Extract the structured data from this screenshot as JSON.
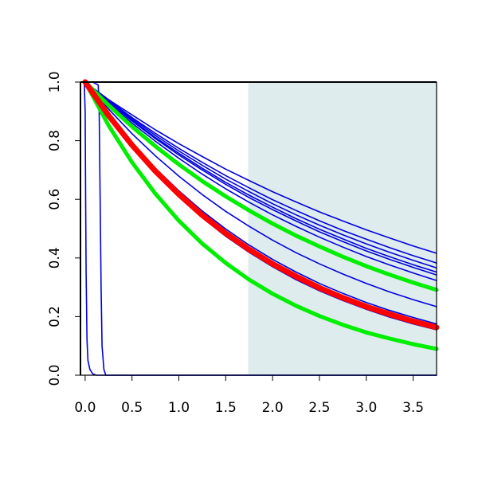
{
  "chart_data": {
    "type": "line",
    "title": "",
    "xlabel": "",
    "ylabel": "",
    "xlim": [
      -0.05,
      3.75
    ],
    "ylim": [
      0,
      1
    ],
    "grid": false,
    "legend": "none",
    "x_ticks": [
      {
        "value": 0.0,
        "label": "0.0"
      },
      {
        "value": 0.5,
        "label": "0.5"
      },
      {
        "value": 1.0,
        "label": "1.0"
      },
      {
        "value": 1.5,
        "label": "1.5"
      },
      {
        "value": 2.0,
        "label": "2.0"
      },
      {
        "value": 2.5,
        "label": "2.5"
      },
      {
        "value": 3.0,
        "label": "3.0"
      },
      {
        "value": 3.5,
        "label": "3.5"
      }
    ],
    "y_ticks": [
      {
        "value": 0.0,
        "label": "0.0"
      },
      {
        "value": 0.2,
        "label": "0.2"
      },
      {
        "value": 0.4,
        "label": "0.4"
      },
      {
        "value": 0.6,
        "label": "0.6"
      },
      {
        "value": 0.8,
        "label": "0.8"
      },
      {
        "value": 1.0,
        "label": "1.0"
      }
    ],
    "shaded_region": {
      "x_from": 1.74,
      "x_to": 3.75,
      "color": "#deeced"
    },
    "colors": {
      "thin": "#0000dd",
      "red": "#ff0000",
      "green": "#00ee00"
    },
    "x": [
      0,
      0.25,
      0.5,
      0.75,
      1.0,
      1.25,
      1.5,
      1.75,
      2.0,
      2.25,
      2.5,
      2.75,
      3.0,
      3.25,
      3.5,
      3.75
    ],
    "series": [
      {
        "style": "thin",
        "values": [
          1.0,
          0.94,
          0.888,
          0.837,
          0.79,
          0.746,
          0.703,
          0.664,
          0.626,
          0.591,
          0.557,
          0.526,
          0.496,
          0.468,
          0.441,
          0.416
        ]
      },
      {
        "style": "thin",
        "values": [
          1.0,
          0.938,
          0.879,
          0.825,
          0.774,
          0.726,
          0.681,
          0.639,
          0.599,
          0.562,
          0.527,
          0.494,
          0.464,
          0.435,
          0.408,
          0.383
        ]
      },
      {
        "style": "thin",
        "values": [
          1.0,
          0.935,
          0.875,
          0.818,
          0.765,
          0.716,
          0.669,
          0.626,
          0.585,
          0.547,
          0.512,
          0.479,
          0.448,
          0.419,
          0.392,
          0.366
        ]
      },
      {
        "style": "thin",
        "values": [
          1.0,
          0.933,
          0.87,
          0.811,
          0.757,
          0.706,
          0.658,
          0.614,
          0.573,
          0.534,
          0.498,
          0.465,
          0.433,
          0.404,
          0.377,
          0.352
        ]
      },
      {
        "style": "thin",
        "values": [
          1.0,
          0.931,
          0.867,
          0.807,
          0.751,
          0.7,
          0.651,
          0.606,
          0.565,
          0.526,
          0.489,
          0.456,
          0.424,
          0.395,
          0.368,
          0.342
        ]
      },
      {
        "style": "thin",
        "values": [
          1.0,
          0.928,
          0.86,
          0.798,
          0.74,
          0.686,
          0.636,
          0.59,
          0.547,
          0.508,
          0.471,
          0.437,
          0.405,
          0.376,
          0.349,
          0.323
        ]
      },
      {
        "style": "thin",
        "values": [
          1.0,
          0.908,
          0.824,
          0.748,
          0.679,
          0.616,
          0.559,
          0.508,
          0.461,
          0.418,
          0.38,
          0.345,
          0.313,
          0.284,
          0.258,
          0.234
        ]
      },
      {
        "style": "thin",
        "values": [
          1.0,
          0.89,
          0.793,
          0.706,
          0.629,
          0.56,
          0.499,
          0.444,
          0.395,
          0.352,
          0.313,
          0.279,
          0.248,
          0.221,
          0.197,
          0.175
        ]
      },
      {
        "style": "thin",
        "values": [
          1.0,
          0.883,
          0.78,
          0.689,
          0.608,
          0.537,
          0.474,
          0.419,
          0.37,
          0.326,
          0.288,
          0.255,
          0.225,
          0.198,
          0.175,
          0.155
        ]
      },
      {
        "style": "green",
        "values": [
          1.0,
          0.921,
          0.848,
          0.781,
          0.719,
          0.662,
          0.61,
          0.562,
          0.517,
          0.476,
          0.439,
          0.404,
          0.372,
          0.343,
          0.316,
          0.291
        ]
      },
      {
        "style": "green",
        "values": [
          1.0,
          0.852,
          0.726,
          0.619,
          0.527,
          0.449,
          0.383,
          0.326,
          0.278,
          0.237,
          0.202,
          0.172,
          0.146,
          0.125,
          0.106,
          0.09
        ]
      },
      {
        "style": "red",
        "values": [
          1.0,
          0.886,
          0.785,
          0.696,
          0.617,
          0.546,
          0.484,
          0.429,
          0.38,
          0.337,
          0.298,
          0.264,
          0.234,
          0.208,
          0.184,
          0.163
        ]
      },
      {
        "style": "thin",
        "x": [
          -0.02,
          -0.01,
          0.0,
          0.005,
          0.01,
          0.02,
          0.03,
          0.05,
          0.08,
          0.12,
          3.75
        ],
        "values": [
          1.0,
          1.0,
          0.9,
          0.6,
          0.35,
          0.12,
          0.05,
          0.02,
          0.005,
          0.0,
          0.0
        ]
      },
      {
        "style": "thin",
        "x": [
          -0.02,
          0.08,
          0.14,
          0.15,
          0.16,
          0.17,
          0.18,
          0.2,
          0.22,
          3.75
        ],
        "values": [
          1.0,
          1.0,
          0.99,
          0.9,
          0.6,
          0.3,
          0.1,
          0.02,
          0.0,
          0.0
        ]
      }
    ]
  }
}
